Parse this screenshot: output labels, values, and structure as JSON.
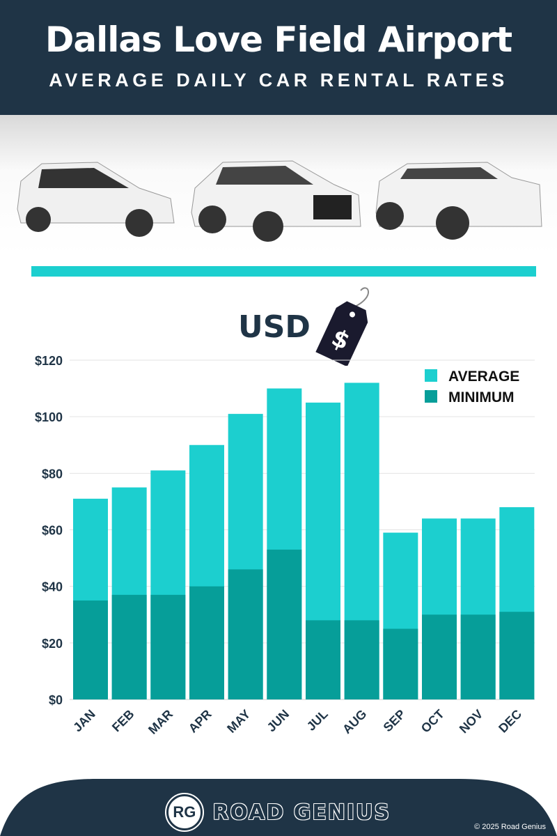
{
  "header": {
    "title": "Dallas Love Field Airport",
    "subtitle": "AVERAGE DAILY CAR RENTAL RATES"
  },
  "currency_label": "USD",
  "tag_symbol": "$",
  "colors": {
    "average": "#1ccfcf",
    "minimum": "#069e99",
    "navy": "#1f3446"
  },
  "chart_data": {
    "type": "bar",
    "stacking": "overlay",
    "title": "Average Daily Car Rental Rates",
    "ylabel": "USD",
    "categories": [
      "JAN",
      "FEB",
      "MAR",
      "APR",
      "MAY",
      "JUN",
      "JUL",
      "AUG",
      "SEP",
      "OCT",
      "NOV",
      "DEC"
    ],
    "series": [
      {
        "name": "AVERAGE",
        "values": [
          71,
          75,
          81,
          90,
          101,
          110,
          105,
          112,
          59,
          64,
          64,
          68
        ]
      },
      {
        "name": "MINIMUM",
        "values": [
          35,
          37,
          37,
          40,
          46,
          53,
          28,
          28,
          25,
          30,
          30,
          31
        ]
      }
    ],
    "yticks": [
      "$0",
      "$20",
      "$40",
      "$60",
      "$80",
      "$100",
      "$120"
    ],
    "ylim": [
      0,
      120
    ],
    "grid": true,
    "legend": "top-right"
  },
  "footer": {
    "logo": "RG",
    "brand": "ROAD GENIUS",
    "copyright": "© 2025 Road Genius"
  }
}
